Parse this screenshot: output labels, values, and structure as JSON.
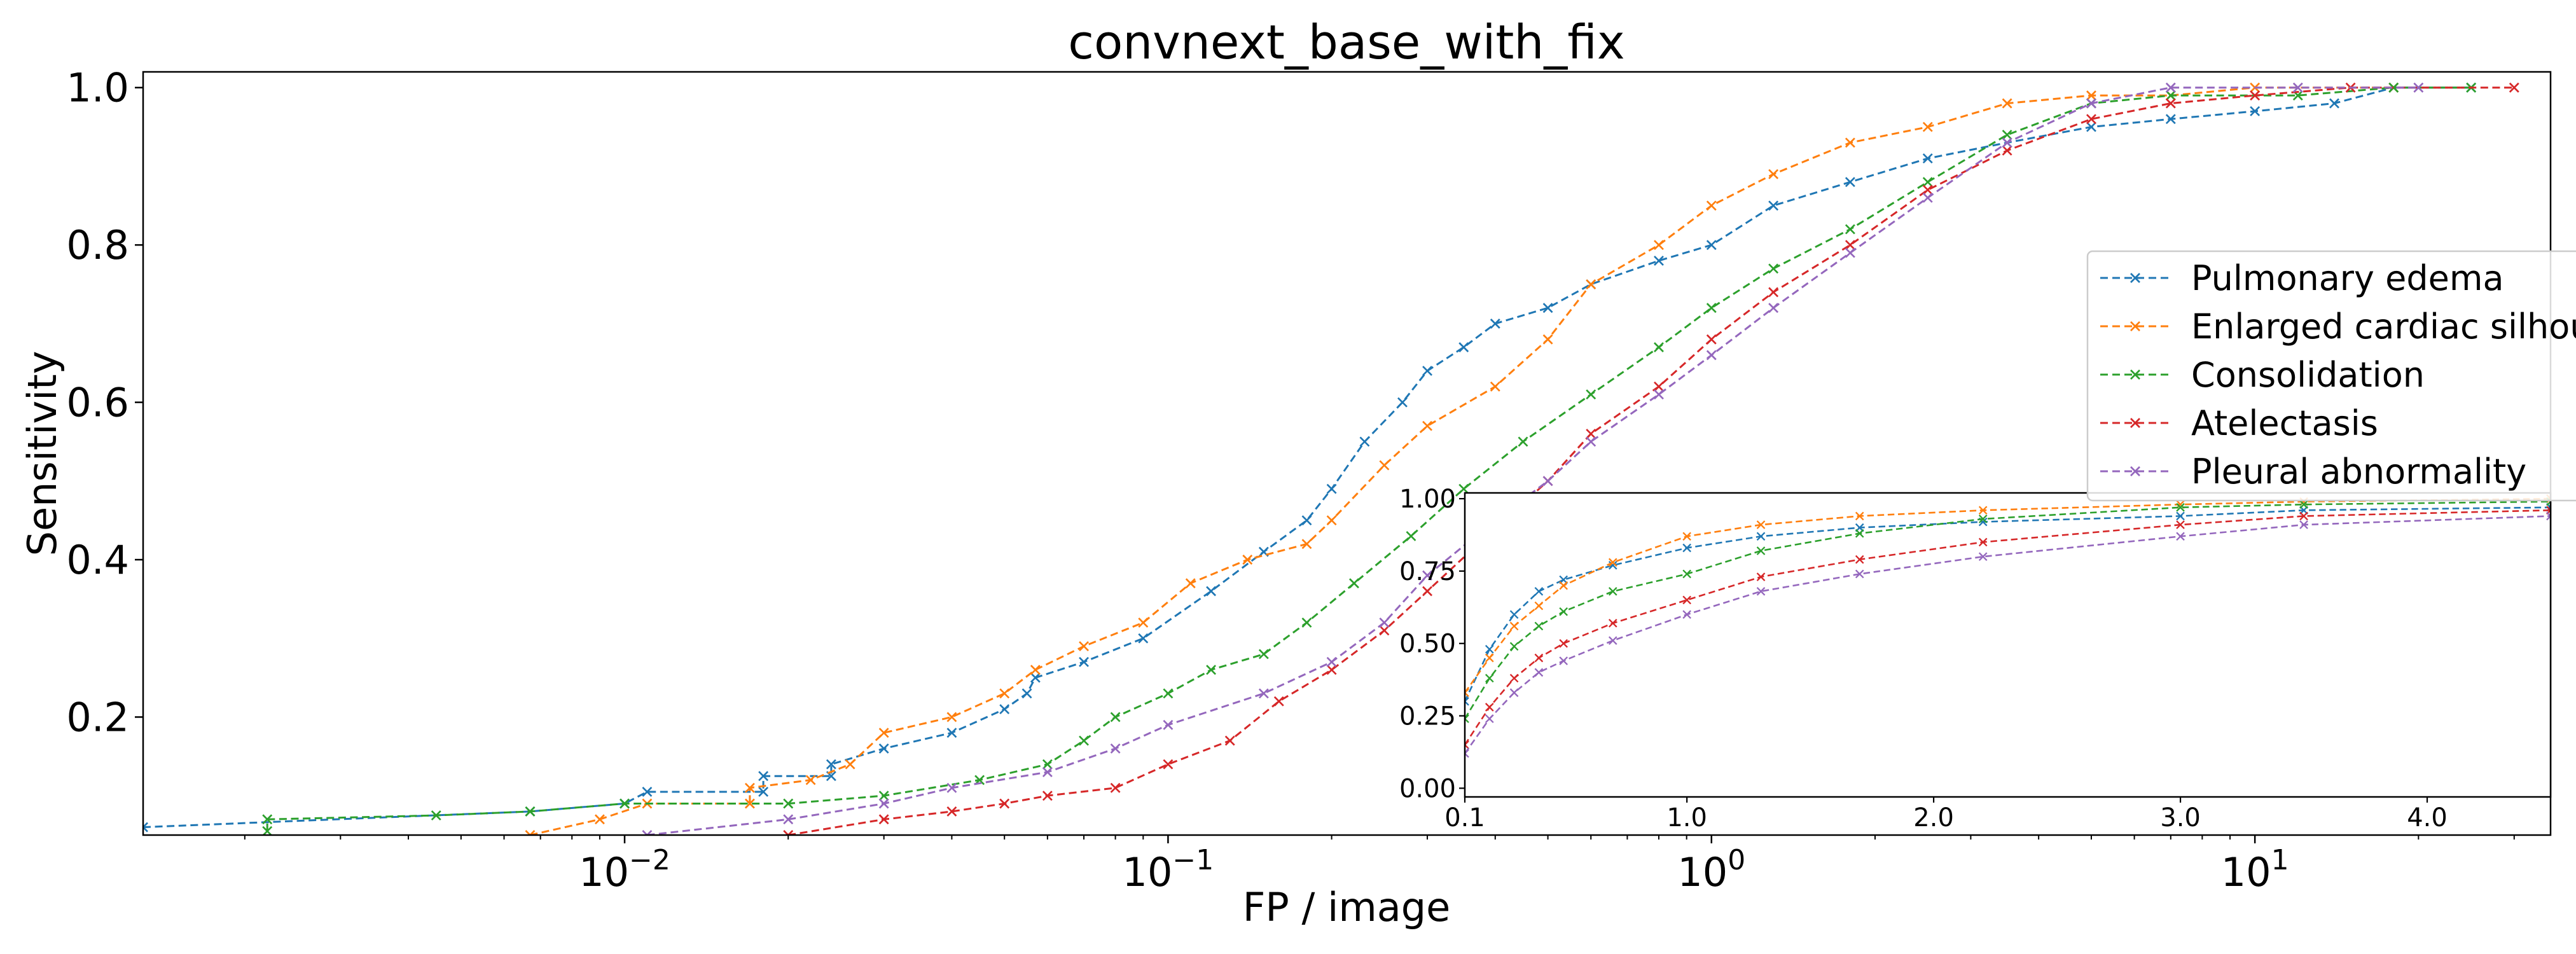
{
  "chart_data": [
    {
      "type": "line",
      "title": "convnext_base_with_fix",
      "xlabel": "FP / image",
      "ylabel": "Sensitivity",
      "xscale": "log",
      "xlim": [
        0.0013,
        35
      ],
      "ylim": [
        0.05,
        1.02
      ],
      "x_ticks": [
        {
          "value": 0.01,
          "base": "10",
          "exp": "−2"
        },
        {
          "value": 0.1,
          "base": "10",
          "exp": "−1"
        },
        {
          "value": 1,
          "base": "10",
          "exp": "0"
        },
        {
          "value": 10,
          "base": "10",
          "exp": "1"
        }
      ],
      "y_ticks": [
        {
          "value": 0.2,
          "label": "0.2"
        },
        {
          "value": 0.4,
          "label": "0.4"
        },
        {
          "value": 0.6,
          "label": "0.6"
        },
        {
          "value": 0.8,
          "label": "0.8"
        },
        {
          "value": 1.0,
          "label": "1.0"
        }
      ],
      "grid": false,
      "legend_position": "right",
      "line_style": "dashed",
      "marker": "x",
      "series": [
        {
          "name": "Pulmonary edema",
          "color": "#1f77b4",
          "points": [
            [
              0.0013,
              0.06
            ],
            [
              0.0067,
              0.08
            ],
            [
              0.01,
              0.09
            ],
            [
              0.011,
              0.105
            ],
            [
              0.018,
              0.105
            ],
            [
              0.018,
              0.125
            ],
            [
              0.024,
              0.125
            ],
            [
              0.024,
              0.14
            ],
            [
              0.03,
              0.16
            ],
            [
              0.04,
              0.18
            ],
            [
              0.05,
              0.21
            ],
            [
              0.055,
              0.23
            ],
            [
              0.057,
              0.25
            ],
            [
              0.07,
              0.27
            ],
            [
              0.09,
              0.3
            ],
            [
              0.12,
              0.36
            ],
            [
              0.15,
              0.41
            ],
            [
              0.18,
              0.45
            ],
            [
              0.2,
              0.49
            ],
            [
              0.23,
              0.55
            ],
            [
              0.27,
              0.6
            ],
            [
              0.3,
              0.64
            ],
            [
              0.35,
              0.67
            ],
            [
              0.4,
              0.7
            ],
            [
              0.5,
              0.72
            ],
            [
              0.6,
              0.75
            ],
            [
              0.8,
              0.78
            ],
            [
              1.0,
              0.8
            ],
            [
              1.3,
              0.85
            ],
            [
              1.8,
              0.88
            ],
            [
              2.5,
              0.91
            ],
            [
              3.5,
              0.93
            ],
            [
              5,
              0.95
            ],
            [
              7,
              0.96
            ],
            [
              10,
              0.97
            ],
            [
              14,
              0.98
            ],
            [
              18,
              1.0
            ],
            [
              25,
              1.0
            ]
          ]
        },
        {
          "name": "Enlarged cardiac silhouette",
          "color": "#ff7f0e",
          "points": [
            [
              0.0067,
              0.05
            ],
            [
              0.009,
              0.07
            ],
            [
              0.011,
              0.09
            ],
            [
              0.017,
              0.09
            ],
            [
              0.017,
              0.11
            ],
            [
              0.022,
              0.12
            ],
            [
              0.026,
              0.14
            ],
            [
              0.03,
              0.18
            ],
            [
              0.04,
              0.2
            ],
            [
              0.05,
              0.23
            ],
            [
              0.057,
              0.26
            ],
            [
              0.07,
              0.29
            ],
            [
              0.09,
              0.32
            ],
            [
              0.11,
              0.37
            ],
            [
              0.14,
              0.4
            ],
            [
              0.18,
              0.42
            ],
            [
              0.2,
              0.45
            ],
            [
              0.25,
              0.52
            ],
            [
              0.3,
              0.57
            ],
            [
              0.4,
              0.62
            ],
            [
              0.5,
              0.68
            ],
            [
              0.6,
              0.75
            ],
            [
              0.8,
              0.8
            ],
            [
              1.0,
              0.85
            ],
            [
              1.3,
              0.89
            ],
            [
              1.8,
              0.93
            ],
            [
              2.5,
              0.95
            ],
            [
              3.5,
              0.98
            ],
            [
              5,
              0.99
            ],
            [
              7,
              0.99
            ],
            [
              10,
              1.0
            ],
            [
              18,
              1.0
            ]
          ]
        },
        {
          "name": "Consolidation",
          "color": "#2ca02c",
          "points": [
            [
              0.0022,
              0.055
            ],
            [
              0.0022,
              0.07
            ],
            [
              0.0045,
              0.075
            ],
            [
              0.0067,
              0.08
            ],
            [
              0.01,
              0.09
            ],
            [
              0.02,
              0.09
            ],
            [
              0.03,
              0.1
            ],
            [
              0.045,
              0.12
            ],
            [
              0.06,
              0.14
            ],
            [
              0.07,
              0.17
            ],
            [
              0.08,
              0.2
            ],
            [
              0.1,
              0.23
            ],
            [
              0.12,
              0.26
            ],
            [
              0.15,
              0.28
            ],
            [
              0.18,
              0.32
            ],
            [
              0.22,
              0.37
            ],
            [
              0.28,
              0.43
            ],
            [
              0.35,
              0.49
            ],
            [
              0.45,
              0.55
            ],
            [
              0.6,
              0.61
            ],
            [
              0.8,
              0.67
            ],
            [
              1.0,
              0.72
            ],
            [
              1.3,
              0.77
            ],
            [
              1.8,
              0.82
            ],
            [
              2.5,
              0.88
            ],
            [
              3.5,
              0.94
            ],
            [
              5,
              0.98
            ],
            [
              7,
              0.99
            ],
            [
              12,
              0.99
            ],
            [
              18,
              1.0
            ],
            [
              25,
              1.0
            ]
          ]
        },
        {
          "name": "Atelectasis",
          "color": "#d62728",
          "points": [
            [
              0.02,
              0.05
            ],
            [
              0.03,
              0.07
            ],
            [
              0.04,
              0.08
            ],
            [
              0.05,
              0.09
            ],
            [
              0.06,
              0.1
            ],
            [
              0.08,
              0.11
            ],
            [
              0.1,
              0.14
            ],
            [
              0.13,
              0.17
            ],
            [
              0.16,
              0.22
            ],
            [
              0.2,
              0.26
            ],
            [
              0.25,
              0.31
            ],
            [
              0.3,
              0.36
            ],
            [
              0.4,
              0.44
            ],
            [
              0.5,
              0.5
            ],
            [
              0.6,
              0.56
            ],
            [
              0.8,
              0.62
            ],
            [
              1.0,
              0.68
            ],
            [
              1.3,
              0.74
            ],
            [
              1.8,
              0.8
            ],
            [
              2.5,
              0.87
            ],
            [
              3.5,
              0.92
            ],
            [
              5,
              0.96
            ],
            [
              7,
              0.98
            ],
            [
              10,
              0.99
            ],
            [
              15,
              1.0
            ],
            [
              30,
              1.0
            ]
          ]
        },
        {
          "name": "Pleural abnormality",
          "color": "#9467bd",
          "points": [
            [
              0.011,
              0.05
            ],
            [
              0.02,
              0.07
            ],
            [
              0.03,
              0.09
            ],
            [
              0.04,
              0.11
            ],
            [
              0.06,
              0.13
            ],
            [
              0.08,
              0.16
            ],
            [
              0.1,
              0.19
            ],
            [
              0.15,
              0.23
            ],
            [
              0.2,
              0.27
            ],
            [
              0.25,
              0.32
            ],
            [
              0.3,
              0.38
            ],
            [
              0.4,
              0.45
            ],
            [
              0.5,
              0.5
            ],
            [
              0.6,
              0.55
            ],
            [
              0.8,
              0.61
            ],
            [
              1.0,
              0.66
            ],
            [
              1.3,
              0.72
            ],
            [
              1.8,
              0.79
            ],
            [
              2.5,
              0.86
            ],
            [
              3.5,
              0.93
            ],
            [
              5,
              0.98
            ],
            [
              7,
              1.0
            ],
            [
              12,
              1.0
            ],
            [
              20,
              1.0
            ]
          ]
        }
      ]
    },
    {
      "type": "line",
      "inset": true,
      "xscale": "linear",
      "xlim": [
        0.1,
        4.5
      ],
      "ylim": [
        -0.03,
        1.02
      ],
      "x_ticks": [
        {
          "value": 0.1,
          "label": "0.1"
        },
        {
          "value": 1.0,
          "label": "1.0"
        },
        {
          "value": 2.0,
          "label": "2.0"
        },
        {
          "value": 3.0,
          "label": "3.0"
        },
        {
          "value": 4.0,
          "label": "4.0"
        }
      ],
      "y_ticks": [
        {
          "value": 0.0,
          "label": "0.00"
        },
        {
          "value": 0.25,
          "label": "0.25"
        },
        {
          "value": 0.5,
          "label": "0.50"
        },
        {
          "value": 0.75,
          "label": "0.75"
        },
        {
          "value": 1.0,
          "label": "1.00"
        }
      ],
      "series": [
        {
          "name": "Pulmonary edema",
          "color": "#1f77b4",
          "points": [
            [
              0.1,
              0.3
            ],
            [
              0.2,
              0.48
            ],
            [
              0.3,
              0.6
            ],
            [
              0.4,
              0.68
            ],
            [
              0.5,
              0.72
            ],
            [
              0.7,
              0.77
            ],
            [
              1.0,
              0.83
            ],
            [
              1.3,
              0.87
            ],
            [
              1.7,
              0.9
            ],
            [
              2.2,
              0.92
            ],
            [
              3.0,
              0.94
            ],
            [
              3.5,
              0.96
            ],
            [
              4.5,
              0.97
            ]
          ]
        },
        {
          "name": "Enlarged cardiac silhouette",
          "color": "#ff7f0e",
          "points": [
            [
              0.1,
              0.33
            ],
            [
              0.2,
              0.45
            ],
            [
              0.3,
              0.56
            ],
            [
              0.4,
              0.63
            ],
            [
              0.5,
              0.7
            ],
            [
              0.7,
              0.78
            ],
            [
              1.0,
              0.87
            ],
            [
              1.3,
              0.91
            ],
            [
              1.7,
              0.94
            ],
            [
              2.2,
              0.96
            ],
            [
              3.0,
              0.98
            ],
            [
              3.5,
              0.99
            ],
            [
              4.5,
              1.0
            ]
          ]
        },
        {
          "name": "Consolidation",
          "color": "#2ca02c",
          "points": [
            [
              0.1,
              0.24
            ],
            [
              0.2,
              0.38
            ],
            [
              0.3,
              0.49
            ],
            [
              0.4,
              0.56
            ],
            [
              0.5,
              0.61
            ],
            [
              0.7,
              0.68
            ],
            [
              1.0,
              0.74
            ],
            [
              1.3,
              0.82
            ],
            [
              1.7,
              0.88
            ],
            [
              2.2,
              0.93
            ],
            [
              3.0,
              0.97
            ],
            [
              3.5,
              0.98
            ],
            [
              4.5,
              0.99
            ]
          ]
        },
        {
          "name": "Atelectasis",
          "color": "#d62728",
          "points": [
            [
              0.1,
              0.15
            ],
            [
              0.2,
              0.28
            ],
            [
              0.3,
              0.38
            ],
            [
              0.4,
              0.45
            ],
            [
              0.5,
              0.5
            ],
            [
              0.7,
              0.57
            ],
            [
              1.0,
              0.65
            ],
            [
              1.3,
              0.73
            ],
            [
              1.7,
              0.79
            ],
            [
              2.2,
              0.85
            ],
            [
              3.0,
              0.91
            ],
            [
              3.5,
              0.94
            ],
            [
              4.5,
              0.96
            ]
          ]
        },
        {
          "name": "Pleural abnormality",
          "color": "#9467bd",
          "points": [
            [
              0.1,
              0.12
            ],
            [
              0.2,
              0.24
            ],
            [
              0.3,
              0.33
            ],
            [
              0.4,
              0.4
            ],
            [
              0.5,
              0.44
            ],
            [
              0.7,
              0.51
            ],
            [
              1.0,
              0.6
            ],
            [
              1.3,
              0.68
            ],
            [
              1.7,
              0.74
            ],
            [
              2.2,
              0.8
            ],
            [
              3.0,
              0.87
            ],
            [
              3.5,
              0.91
            ],
            [
              4.5,
              0.94
            ]
          ]
        }
      ]
    }
  ],
  "legend": {
    "items": [
      {
        "label": "Pulmonary edema",
        "color": "#1f77b4"
      },
      {
        "label": "Enlarged cardiac silhouette",
        "color": "#ff7f0e"
      },
      {
        "label": "Consolidation",
        "color": "#2ca02c"
      },
      {
        "label": "Atelectasis",
        "color": "#d62728"
      },
      {
        "label": "Pleural abnormality",
        "color": "#9467bd"
      }
    ]
  }
}
